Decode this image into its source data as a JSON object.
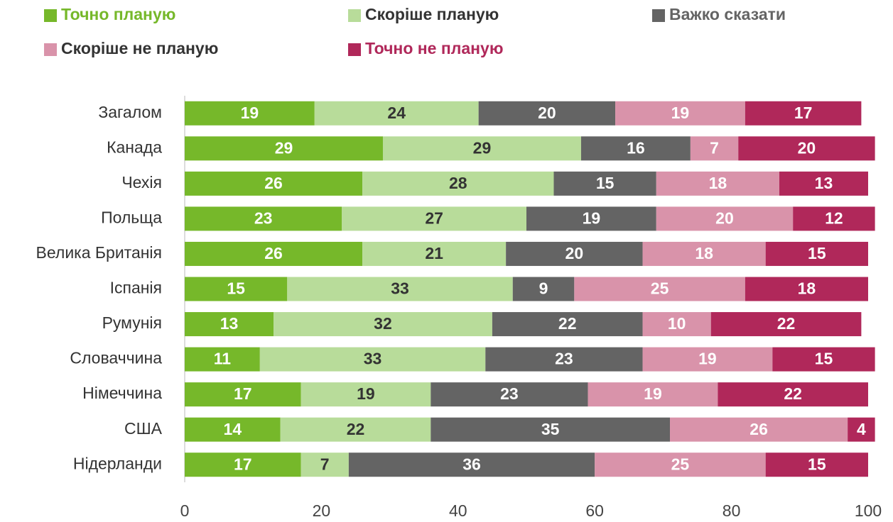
{
  "chart_data": {
    "type": "stacked_barh",
    "categories": [
      "Загалом",
      "Канада",
      "Чехія",
      "Польща",
      "Велика Британія",
      "Іспанія",
      "Румунія",
      "Словаччина",
      "Німеччина",
      "США",
      "Нідерланди"
    ],
    "series": [
      {
        "name": "Точно планую",
        "color": "#76b82a",
        "values": [
          19,
          29,
          26,
          23,
          26,
          15,
          13,
          11,
          17,
          14,
          17
        ]
      },
      {
        "name": "Скоріше планую",
        "color": "#b8dc9a",
        "values": [
          24,
          29,
          28,
          27,
          21,
          33,
          32,
          33,
          19,
          22,
          7
        ]
      },
      {
        "name": "Важко сказати",
        "color": "#646464",
        "values": [
          20,
          16,
          15,
          19,
          20,
          9,
          22,
          23,
          23,
          35,
          36
        ]
      },
      {
        "name": "Скоріше не планую",
        "color": "#d993aa",
        "values": [
          19,
          7,
          18,
          20,
          18,
          25,
          10,
          19,
          19,
          26,
          25
        ]
      },
      {
        "name": "Точно не планую",
        "color": "#b0285a",
        "values": [
          17,
          20,
          13,
          12,
          15,
          18,
          22,
          15,
          22,
          4,
          15
        ]
      }
    ],
    "xlim": [
      0,
      100
    ],
    "xticks": [
      0,
      20,
      40,
      60,
      80,
      100
    ],
    "legend": "top"
  }
}
